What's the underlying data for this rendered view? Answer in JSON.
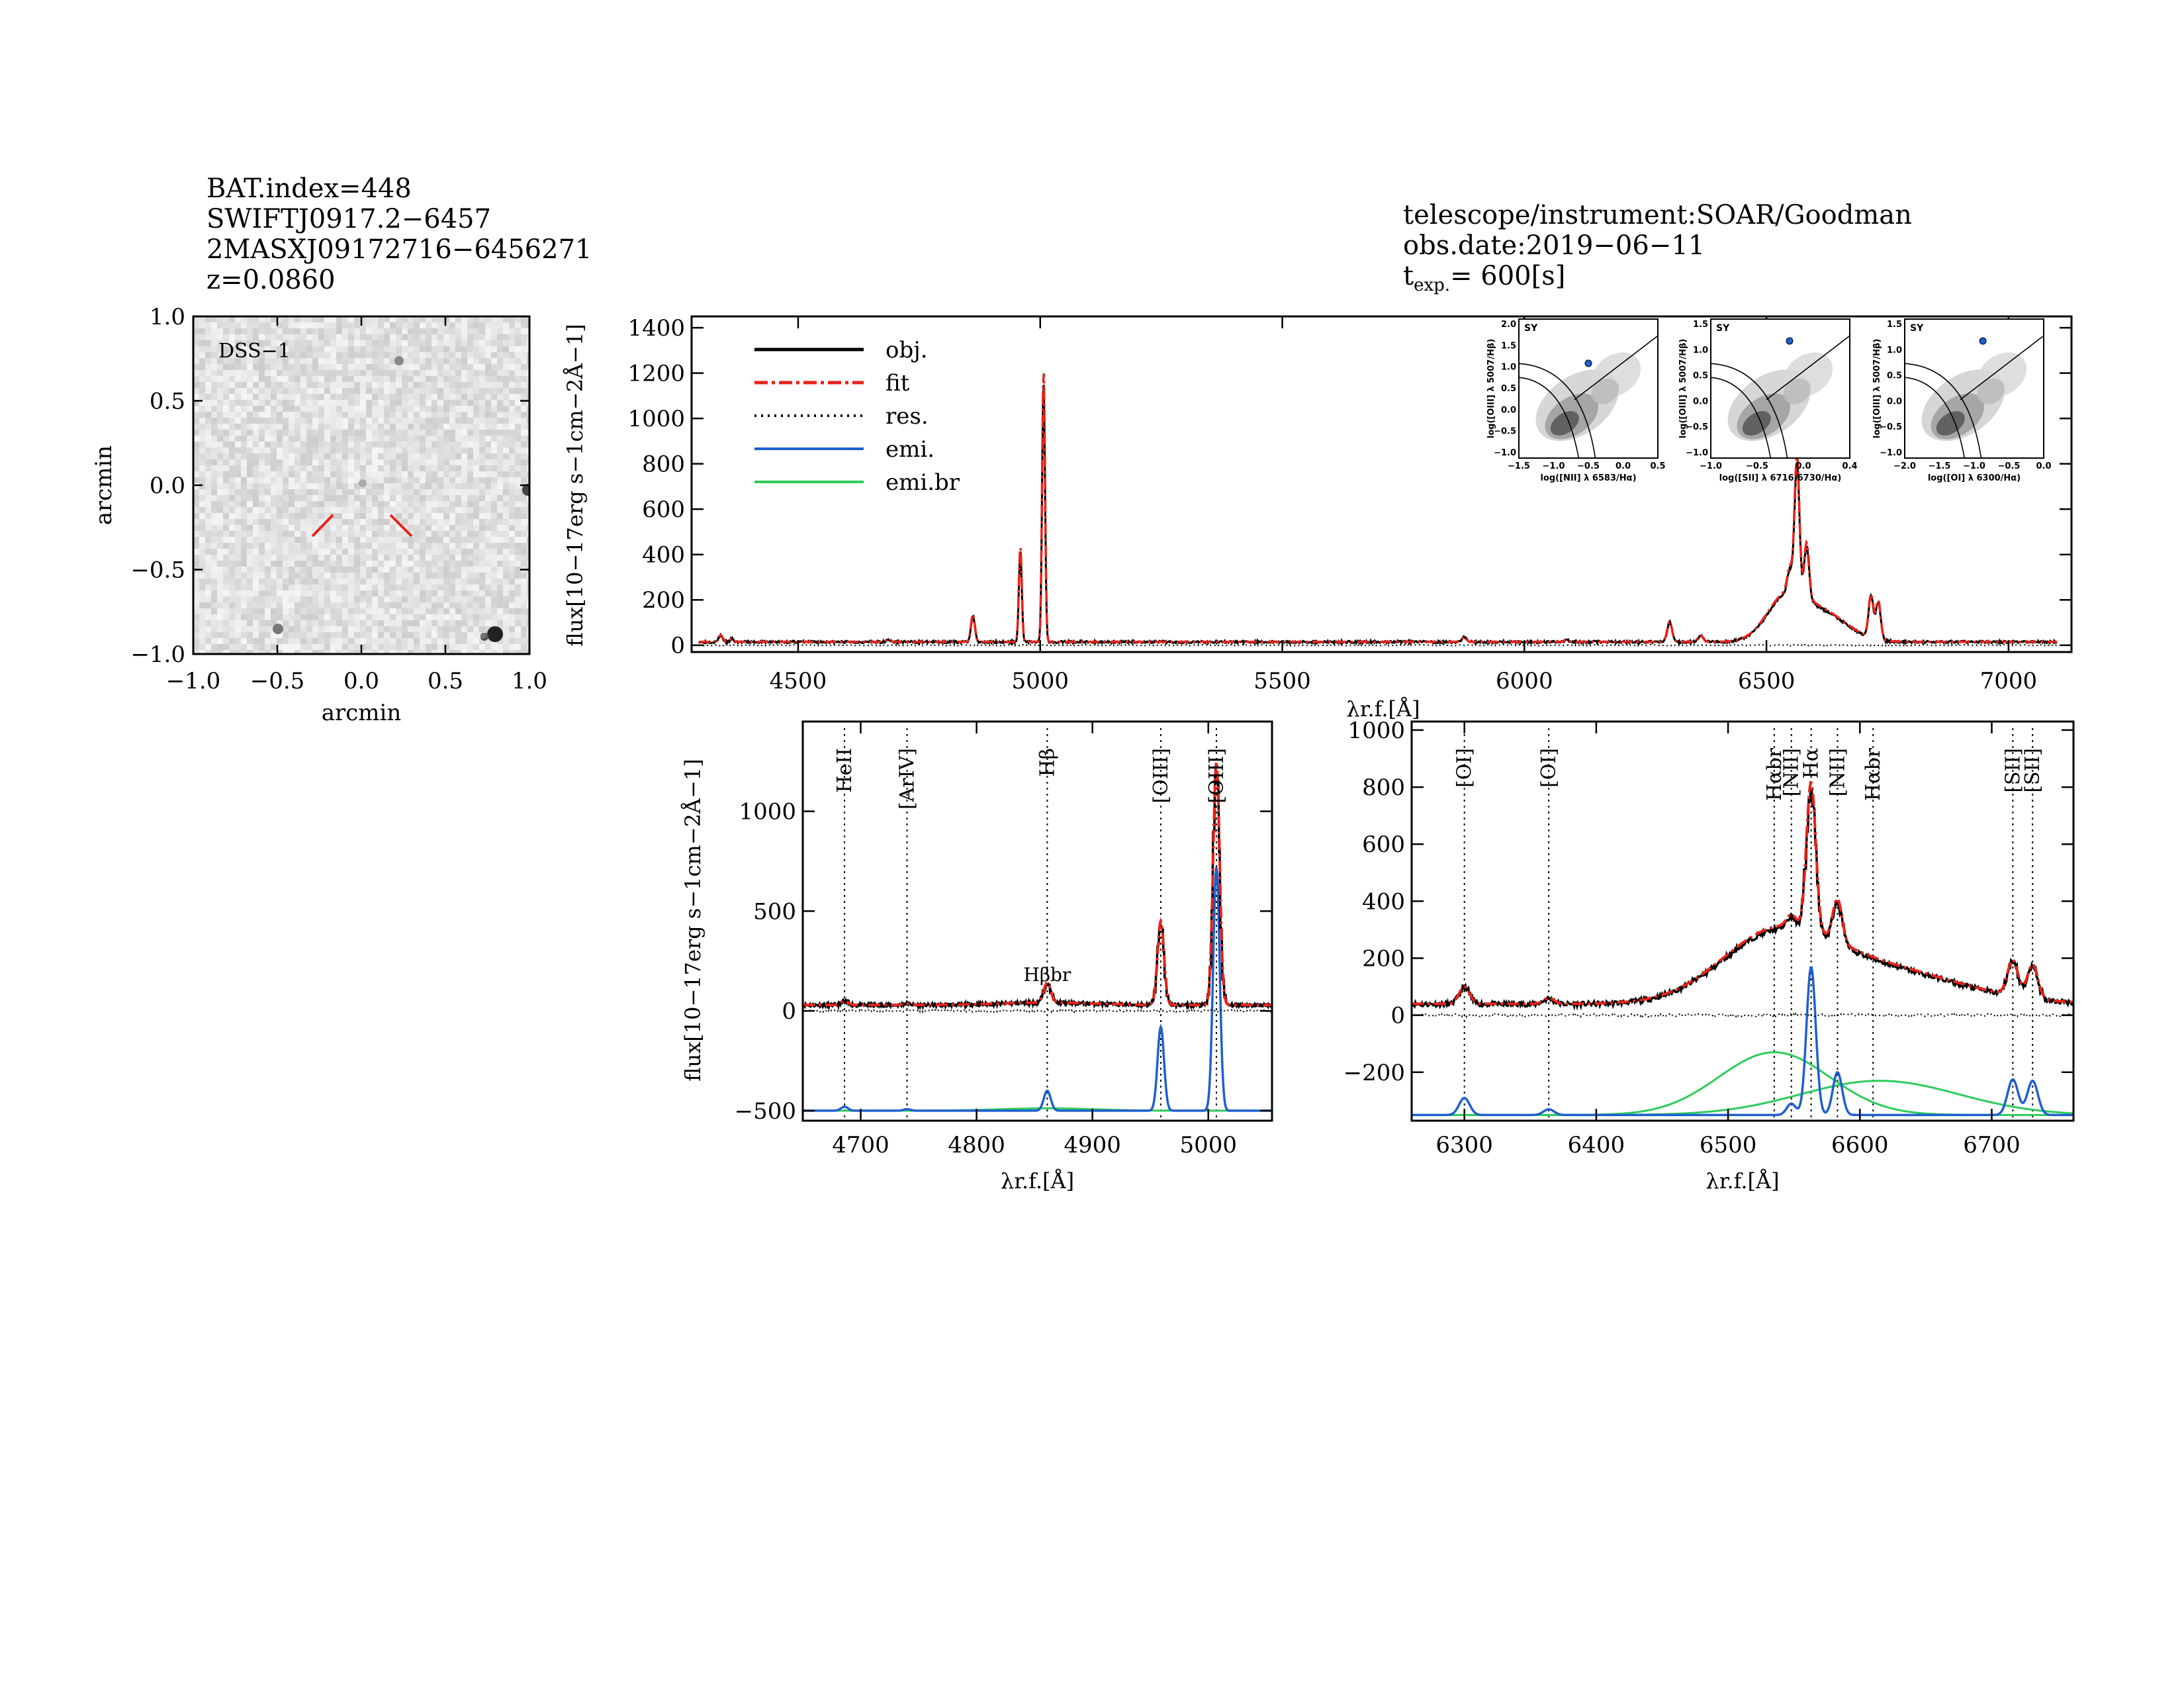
{
  "header_left": {
    "line1": "BAT.index=448",
    "line2": "SWIFTJ0917.2−6457",
    "line3": "2MASXJ09172716−6456271",
    "line4": "z=0.0860"
  },
  "header_right": {
    "line1": "telescope/instrument:SOAR/Goodman",
    "line2": "obs.date:2019−06−11",
    "texp_label": "t",
    "texp_sub": "exp.",
    "texp_value": "=  600[s]"
  },
  "colors": {
    "obj": "#000000",
    "fit": "#e8231a",
    "res": "#000000",
    "emi": "#1f5fcf",
    "emi_br": "#2ecc5a",
    "inset_point": "#1f5fcf",
    "inset_label": "#1f5fcf"
  },
  "dss": {
    "label": "DSS−1",
    "xlabel": "arcmin",
    "ylabel": "arcmin",
    "xticks": [
      "−1.0",
      "−0.5",
      "0.0",
      "0.5",
      "1.0"
    ],
    "yticks": [
      "1.0",
      "0.5",
      "0.0",
      "−0.5",
      "−1.0"
    ],
    "marker_color": "#e8231a"
  },
  "chart_data": [
    {
      "id": "full_spectrum",
      "type": "line",
      "xlabel": "λr.f.[Å]",
      "ylabel": "flux[10−17erg s−1cm−2Å−1]",
      "xlim": [
        4280,
        7130
      ],
      "ylim": [
        -30,
        1450
      ],
      "xticks": [
        4500,
        5000,
        5500,
        6000,
        6500,
        7000
      ],
      "yticks": [
        0,
        200,
        400,
        600,
        800,
        1000,
        1200,
        1400
      ],
      "legend": [
        "obj.",
        "fit",
        "res.",
        "emi.",
        "emi.br"
      ],
      "legend_placement": "top-left",
      "continuum_level": 15,
      "lines": [
        {
          "center": 4340,
          "peak": 30,
          "sigma": 4
        },
        {
          "center": 4363,
          "peak": 15,
          "sigma": 3
        },
        {
          "center": 4686,
          "peak": 12,
          "sigma": 4
        },
        {
          "center": 4861,
          "peak": 120,
          "sigma": 4
        },
        {
          "center": 4959,
          "peak": 420,
          "sigma": 3
        },
        {
          "center": 5007,
          "peak": 1200,
          "sigma": 3
        },
        {
          "center": 5876,
          "peak": 25,
          "sigma": 4
        },
        {
          "center": 6087,
          "peak": 12,
          "sigma": 4
        },
        {
          "center": 6300,
          "peak": 90,
          "sigma": 5
        },
        {
          "center": 6364,
          "peak": 30,
          "sigma": 5
        },
        {
          "center": 6563,
          "peak": 600,
          "sigma": 5
        },
        {
          "center": 6583,
          "peak": 240,
          "sigma": 5
        },
        {
          "center": 6548,
          "peak": 100,
          "sigma": 5
        },
        {
          "center": 6716,
          "peak": 190,
          "sigma": 5
        },
        {
          "center": 6731,
          "peak": 170,
          "sigma": 5
        },
        {
          "center": 6540,
          "peak": 190,
          "sigma": 40
        },
        {
          "center": 6620,
          "peak": 120,
          "sigma": 50
        }
      ]
    },
    {
      "id": "hbeta_zoom",
      "type": "line",
      "xlabel": "λr.f.[Å]",
      "ylabel": "flux[10−17erg s−1cm−2Å−1]",
      "xlim": [
        4650,
        5055
      ],
      "ylim": [
        -550,
        1450
      ],
      "xticks": [
        4700,
        4800,
        4900,
        5000
      ],
      "yticks": [
        -500,
        0,
        500,
        1000
      ],
      "continuum_level": 30,
      "emi_offset": -500,
      "line_markers": [
        {
          "x": 4686,
          "label": "HeII"
        },
        {
          "x": 4740,
          "label": "[ArIV]"
        },
        {
          "x": 4861,
          "label": "Hβ"
        },
        {
          "x": 4959,
          "label": "[OIII]"
        },
        {
          "x": 5007,
          "label": "[OIII]"
        }
      ],
      "annotation": "Hβbr",
      "narrow_lines": [
        {
          "center": 4686,
          "peak": 20,
          "sigma": 3
        },
        {
          "center": 4740,
          "peak": 8,
          "sigma": 3
        },
        {
          "center": 4861,
          "peak": 100,
          "sigma": 3
        },
        {
          "center": 4959,
          "peak": 420,
          "sigma": 2.8
        },
        {
          "center": 5007,
          "peak": 1220,
          "sigma": 2.8
        }
      ],
      "broad_lines": [
        {
          "center": 4861,
          "peak": 12,
          "sigma": 40
        }
      ]
    },
    {
      "id": "halpha_zoom",
      "type": "line",
      "xlabel": "λr.f.[Å]",
      "ylabel": "",
      "xlim": [
        6260,
        6762
      ],
      "ylim": [
        -370,
        1030
      ],
      "xticks": [
        6300,
        6400,
        6500,
        6600,
        6700
      ],
      "yticks": [
        -200,
        0,
        200,
        400,
        600,
        800,
        1000
      ],
      "continuum_level": 40,
      "emi_offset": -350,
      "line_markers": [
        {
          "x": 6300,
          "label": "[OI]"
        },
        {
          "x": 6364,
          "label": "[OI]"
        },
        {
          "x": 6535,
          "label": "Hαbr"
        },
        {
          "x": 6548,
          "label": "[NII]"
        },
        {
          "x": 6563,
          "label": "Hα"
        },
        {
          "x": 6583,
          "label": "[NII]"
        },
        {
          "x": 6610,
          "label": "Hαbr"
        },
        {
          "x": 6716,
          "label": "[SII]"
        },
        {
          "x": 6731,
          "label": "[SII]"
        }
      ],
      "narrow_lines": [
        {
          "center": 6300,
          "peak": 60,
          "sigma": 4
        },
        {
          "center": 6364,
          "peak": 20,
          "sigma": 4
        },
        {
          "center": 6548,
          "peak": 40,
          "sigma": 3.5
        },
        {
          "center": 6563,
          "peak": 520,
          "sigma": 3.5
        },
        {
          "center": 6583,
          "peak": 150,
          "sigma": 3.5
        },
        {
          "center": 6716,
          "peak": 125,
          "sigma": 4
        },
        {
          "center": 6731,
          "peak": 120,
          "sigma": 4
        }
      ],
      "broad_lines": [
        {
          "center": 6535,
          "peak": 220,
          "sigma": 42
        },
        {
          "center": 6615,
          "peak": 120,
          "sigma": 60
        }
      ]
    }
  ],
  "bpt": [
    {
      "xlabel": "log([NII] λ 6583/Hα)",
      "ylabel": "log([OIII] λ 5007/Hβ)",
      "tag": "SY",
      "xticks": [
        "−1.5",
        "−1.0",
        "−0.5",
        "0.0",
        "0.5"
      ],
      "yticks": [
        "2.0",
        "1.5",
        "1.0",
        "0.5",
        "0.0",
        "−0.5",
        "−1.0"
      ],
      "xlim": [
        -1.7,
        0.6
      ],
      "ylim": [
        -1.2,
        2.1
      ],
      "point": [
        -0.55,
        1.05
      ]
    },
    {
      "xlabel": "log([SII] λ 6716,6730/Hα)",
      "ylabel": "log([OIII] λ 5007/Hβ)",
      "tag": "SY",
      "xticks": [
        "−1.0",
        "−0.5",
        "0.0",
        "0.4"
      ],
      "yticks": [
        "1.5",
        "1.0",
        "0.5",
        "0.0",
        "−0.5",
        "−1.0"
      ],
      "xlim": [
        -1.3,
        0.5
      ],
      "ylim": [
        -1.2,
        1.65
      ],
      "point": [
        -0.28,
        1.2
      ]
    },
    {
      "xlabel": "log([OI] λ 6300/Hα)",
      "ylabel": "log([OIII] λ 5007/Hβ)",
      "tag": "SY",
      "xticks": [
        "−2.0",
        "−1.5",
        "−1.0",
        "−0.5",
        "0.0"
      ],
      "yticks": [
        "1.5",
        "1.0",
        "0.5",
        "0.0",
        "−0.5",
        "−1.0"
      ],
      "xlim": [
        -2.3,
        0.1
      ],
      "ylim": [
        -1.2,
        1.65
      ],
      "point": [
        -0.95,
        1.2
      ]
    }
  ]
}
